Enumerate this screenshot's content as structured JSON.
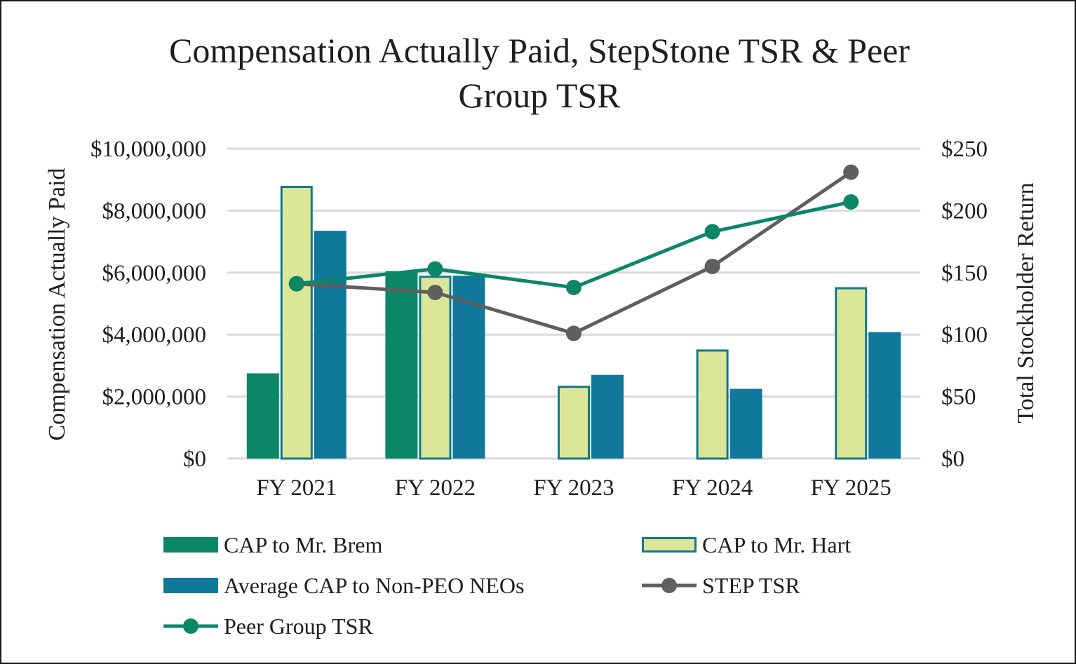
{
  "chart_data": {
    "type": "bar+line",
    "title_lines": [
      "Compensation Actually Paid, StepStone TSR & Peer",
      "Group TSR"
    ],
    "categories": [
      "FY 2021",
      "FY 2022",
      "FY 2023",
      "FY 2024",
      "FY 2025"
    ],
    "y_left": {
      "label": "Compensation Actually Paid",
      "range": [
        0,
        10000000
      ],
      "ticks": [
        0,
        2000000,
        4000000,
        6000000,
        8000000,
        10000000
      ],
      "tick_labels": [
        "$0",
        "$2,000,000",
        "$4,000,000",
        "$6,000,000",
        "$8,000,000",
        "$10,000,000"
      ]
    },
    "y_right": {
      "label": "Total Stockholder Return",
      "range": [
        0,
        250
      ],
      "ticks": [
        0,
        50,
        100,
        150,
        200,
        250
      ],
      "tick_labels": [
        "$0",
        "$50",
        "$100",
        "$150",
        "$200",
        "$250"
      ]
    },
    "grid": true,
    "legend_position": "bottom",
    "bar_series": [
      {
        "name": "CAP to Mr. Brem",
        "values": [
          2750000,
          6050000,
          null,
          null,
          null
        ],
        "color": "#0b8768",
        "stroke": "#0b8768"
      },
      {
        "name": "CAP to Mr. Hart",
        "values": [
          8800000,
          5900000,
          2350000,
          3520000,
          5530000
        ],
        "color": "#dce699",
        "stroke": "#117a8b"
      },
      {
        "name": "Average CAP to Non-PEO NEOs",
        "values": [
          7350000,
          5900000,
          2700000,
          2250000,
          4080000
        ],
        "color": "#0f789b",
        "stroke": "#0f789b"
      }
    ],
    "line_series": [
      {
        "name": "STEP TSR",
        "values": [
          141,
          134,
          101,
          155,
          231
        ],
        "color": "#5f5f5f"
      },
      {
        "name": "Peer Group TSR",
        "values": [
          141,
          153,
          138,
          183,
          207
        ],
        "color": "#0b8768"
      }
    ],
    "legend": [
      {
        "name": "CAP to Mr. Brem",
        "kind": "bar"
      },
      {
        "name": "CAP to Mr. Hart",
        "kind": "bar"
      },
      {
        "name": "Average CAP to Non-PEO NEOs",
        "kind": "bar"
      },
      {
        "name": "STEP TSR",
        "kind": "line"
      },
      {
        "name": "Peer Group TSR",
        "kind": "line"
      }
    ]
  }
}
